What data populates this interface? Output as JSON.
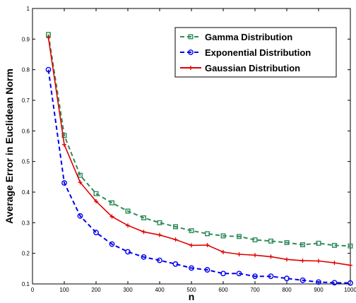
{
  "chart_data": {
    "type": "line",
    "xlabel": "n",
    "ylabel": "Average Error in Euclidean Norm",
    "xlim": [
      0,
      1000
    ],
    "ylim": [
      0.1,
      1
    ],
    "xticks": [
      0,
      100,
      200,
      300,
      400,
      500,
      600,
      700,
      800,
      900,
      1000
    ],
    "yticks": [
      0.1,
      0.2,
      0.3,
      0.4,
      0.5,
      0.6,
      0.7,
      0.8,
      0.9,
      1
    ],
    "xtick_labels": [
      "0",
      "100",
      "200",
      "300",
      "400",
      "500",
      "600",
      "700",
      "800",
      "900",
      "1000"
    ],
    "ytick_labels": [
      "0.1",
      "0.2",
      "0.3",
      "0.4",
      "0.5",
      "0.6",
      "0.7",
      "0.8",
      "0.9",
      "1"
    ],
    "grid": false,
    "legend_position": "top-right",
    "x": [
      50,
      100,
      150,
      200,
      250,
      300,
      350,
      400,
      450,
      500,
      550,
      600,
      650,
      700,
      750,
      800,
      850,
      900,
      950,
      1000
    ],
    "series": [
      {
        "name": "Gamma Distribution",
        "color": "#2e8b57",
        "line_style": "dashed",
        "marker": "square",
        "values": [
          0.915,
          0.585,
          0.455,
          0.395,
          0.365,
          0.338,
          0.316,
          0.3,
          0.287,
          0.274,
          0.264,
          0.257,
          0.255,
          0.244,
          0.24,
          0.235,
          0.228,
          0.233,
          0.226,
          0.224
        ]
      },
      {
        "name": "Exponential Distribution",
        "color": "#0000ee",
        "line_style": "dashed",
        "marker": "circle",
        "values": [
          0.8,
          0.43,
          0.322,
          0.268,
          0.23,
          0.205,
          0.188,
          0.177,
          0.165,
          0.152,
          0.146,
          0.134,
          0.134,
          0.125,
          0.125,
          0.118,
          0.112,
          0.106,
          0.104,
          0.103
        ]
      },
      {
        "name": "Gaussian Distribution",
        "color": "#e00000",
        "line_style": "solid",
        "marker": "plus",
        "values": [
          0.905,
          0.555,
          0.432,
          0.37,
          0.32,
          0.291,
          0.27,
          0.26,
          0.245,
          0.226,
          0.227,
          0.204,
          0.197,
          0.194,
          0.189,
          0.18,
          0.176,
          0.175,
          0.169,
          0.161
        ]
      }
    ]
  }
}
